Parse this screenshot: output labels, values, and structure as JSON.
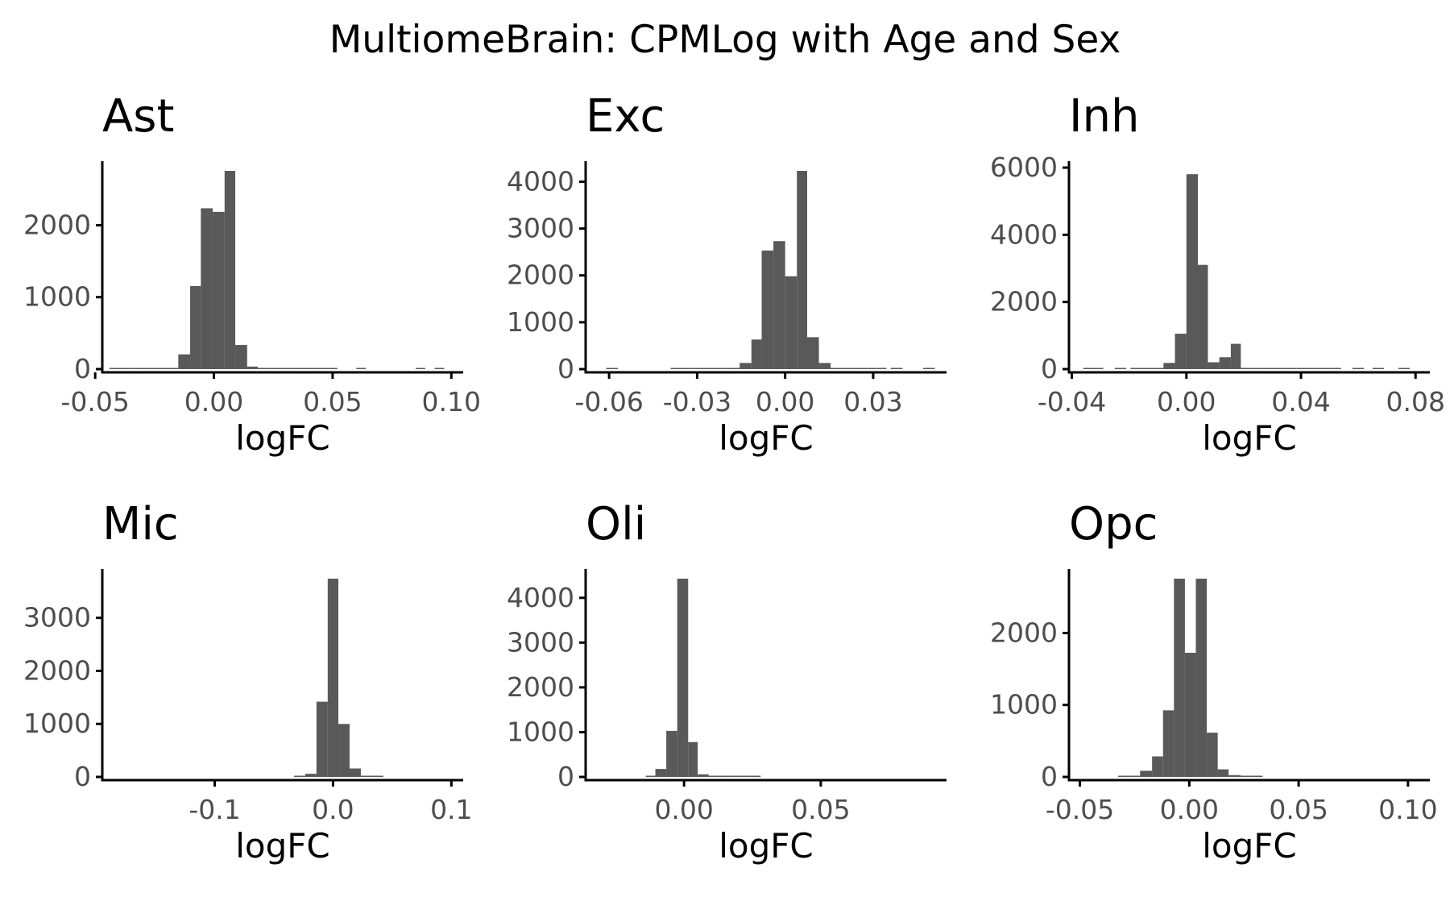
{
  "title": "MultiomeBrain: CPMLog with Age and Sex",
  "colors": {
    "bar": "#595959",
    "axis": "#000000",
    "tick_text": "#4d4d4d"
  },
  "chart_data": [
    {
      "type": "bar",
      "panel": "Ast",
      "xlabel": "logFC",
      "ylabel": "",
      "xlim": [
        -0.047,
        0.105
      ],
      "ylim": [
        0,
        2800
      ],
      "xticks": [
        -0.05,
        0.0,
        0.05,
        0.1
      ],
      "xtick_labels": [
        "-0.05",
        "0.00",
        "0.05",
        "0.10"
      ],
      "yticks": [
        0,
        1000,
        2000
      ],
      "ytick_labels": [
        "0",
        "1000",
        "2000"
      ],
      "bin_edges": [
        -0.044,
        -0.039,
        -0.034,
        -0.029,
        -0.0245,
        -0.0195,
        -0.015,
        -0.01,
        -0.0055,
        -0.0005,
        0.0045,
        0.009,
        0.014,
        0.0185,
        0.0235,
        0.028,
        0.033,
        0.038,
        0.0425,
        0.0475,
        0.052
      ],
      "values": [
        3,
        3,
        3,
        3,
        3,
        30,
        250,
        1200,
        2280,
        2230,
        2800,
        380,
        80,
        40,
        15,
        10,
        8,
        5,
        3,
        3
      ],
      "extra_bins": [
        [
          0.06,
          0.064,
          3
        ],
        [
          0.085,
          0.089,
          3
        ],
        [
          0.093,
          0.097,
          3
        ]
      ]
    },
    {
      "type": "bar",
      "panel": "Exc",
      "xlabel": "logFC",
      "ylabel": "",
      "xlim": [
        -0.068,
        0.055
      ],
      "ylim": [
        0,
        4300
      ],
      "xticks": [
        -0.06,
        -0.03,
        0.0,
        0.03
      ],
      "xtick_labels": [
        "-0.06",
        "-0.03",
        "0.00",
        "0.03"
      ],
      "yticks": [
        0,
        1000,
        2000,
        3000,
        4000
      ],
      "ytick_labels": [
        "0",
        "1000",
        "2000",
        "3000",
        "4000"
      ],
      "bin_edges": [
        -0.039,
        -0.035,
        -0.031,
        -0.027,
        -0.023,
        -0.0195,
        -0.0155,
        -0.0115,
        -0.008,
        -0.004,
        0.0,
        0.004,
        0.0075,
        0.0115,
        0.0155,
        0.019,
        0.023,
        0.027,
        0.031,
        0.0345
      ],
      "values": [
        5,
        5,
        5,
        5,
        10,
        40,
        200,
        700,
        2600,
        2800,
        2050,
        4300,
        750,
        200,
        60,
        20,
        10,
        5,
        5
      ],
      "extra_bins": [
        [
          -0.061,
          -0.057,
          5
        ],
        [
          0.036,
          0.04,
          5
        ],
        [
          0.047,
          0.051,
          5
        ]
      ]
    },
    {
      "type": "bar",
      "panel": "Inh",
      "xlabel": "logFC",
      "ylabel": "",
      "xlim": [
        -0.041,
        0.085
      ],
      "ylim": [
        0,
        6000
      ],
      "xticks": [
        -0.04,
        0.0,
        0.04,
        0.08
      ],
      "xtick_labels": [
        "-0.04",
        "0.00",
        "0.04",
        "0.08"
      ],
      "yticks": [
        0,
        2000,
        4000,
        6000
      ],
      "ytick_labels": [
        "0",
        "2000",
        "4000",
        "6000"
      ],
      "bin_edges": [
        -0.0195,
        -0.0155,
        -0.0115,
        -0.008,
        -0.004,
        0.0,
        0.004,
        0.0075,
        0.0115,
        0.0155,
        0.019,
        0.023,
        0.027,
        0.031,
        0.0345,
        0.0385,
        0.0425,
        0.046,
        0.05,
        0.054
      ],
      "values": [
        10,
        30,
        60,
        280,
        1150,
        5900,
        3200,
        300,
        450,
        850,
        100,
        60,
        30,
        15,
        10,
        10,
        10,
        10,
        10
      ],
      "extra_bins": [
        [
          -0.036,
          -0.029,
          8
        ],
        [
          -0.025,
          -0.021,
          8
        ],
        [
          0.058,
          0.062,
          8
        ],
        [
          0.065,
          0.069,
          8
        ],
        [
          0.074,
          0.078,
          8
        ]
      ]
    },
    {
      "type": "bar",
      "panel": "Mic",
      "xlabel": "logFC",
      "ylabel": "",
      "xlim": [
        -0.195,
        0.11
      ],
      "ylim": [
        0,
        3800
      ],
      "xticks": [
        -0.1,
        0.0,
        0.1
      ],
      "xtick_labels": [
        "-0.1",
        "0.0",
        "0.1"
      ],
      "yticks": [
        0,
        1000,
        2000,
        3000
      ],
      "ytick_labels": [
        "0",
        "1000",
        "2000",
        "3000"
      ],
      "bin_edges": [
        -0.033,
        -0.0235,
        -0.014,
        -0.0045,
        0.0045,
        0.014,
        0.0235,
        0.033,
        0.0425
      ],
      "values": [
        20,
        120,
        1480,
        3800,
        1060,
        220,
        60,
        20
      ],
      "extra_bins": []
    },
    {
      "type": "bar",
      "panel": "Oli",
      "xlabel": "logFC",
      "ylabel": "",
      "xlim": [
        -0.036,
        0.096
      ],
      "ylim": [
        0,
        4500
      ],
      "xticks": [
        0.0,
        0.05
      ],
      "xtick_labels": [
        "0.00",
        "0.05"
      ],
      "yticks": [
        0,
        1000,
        2000,
        3000,
        4000
      ],
      "ytick_labels": [
        "0",
        "1000",
        "2000",
        "3000",
        "4000"
      ],
      "bin_edges": [
        -0.014,
        -0.0105,
        -0.0065,
        -0.0025,
        0.0015,
        0.005,
        0.009,
        0.013,
        0.0165,
        0.0205,
        0.0245,
        0.028
      ],
      "values": [
        60,
        250,
        1100,
        4500,
        850,
        130,
        50,
        20,
        10,
        10,
        10
      ],
      "extra_bins": []
    },
    {
      "type": "bar",
      "panel": "Opc",
      "xlabel": "logFC",
      "ylabel": "",
      "xlim": [
        -0.055,
        0.11
      ],
      "ylim": [
        0,
        2800
      ],
      "xticks": [
        -0.05,
        0.0,
        0.05,
        0.1
      ],
      "xtick_labels": [
        "-0.05",
        "0.00",
        "0.05",
        "0.10"
      ],
      "yticks": [
        0,
        1000,
        2000
      ],
      "ytick_labels": [
        "0",
        "1000",
        "2000"
      ],
      "bin_edges": [
        -0.0325,
        -0.0275,
        -0.0225,
        -0.017,
        -0.012,
        -0.007,
        -0.002,
        0.003,
        0.008,
        0.013,
        0.018,
        0.0235,
        0.0285,
        0.0335
      ],
      "values": [
        10,
        40,
        130,
        330,
        970,
        2800,
        1770,
        2800,
        660,
        150,
        70,
        30,
        20
      ],
      "extra_bins": []
    }
  ]
}
